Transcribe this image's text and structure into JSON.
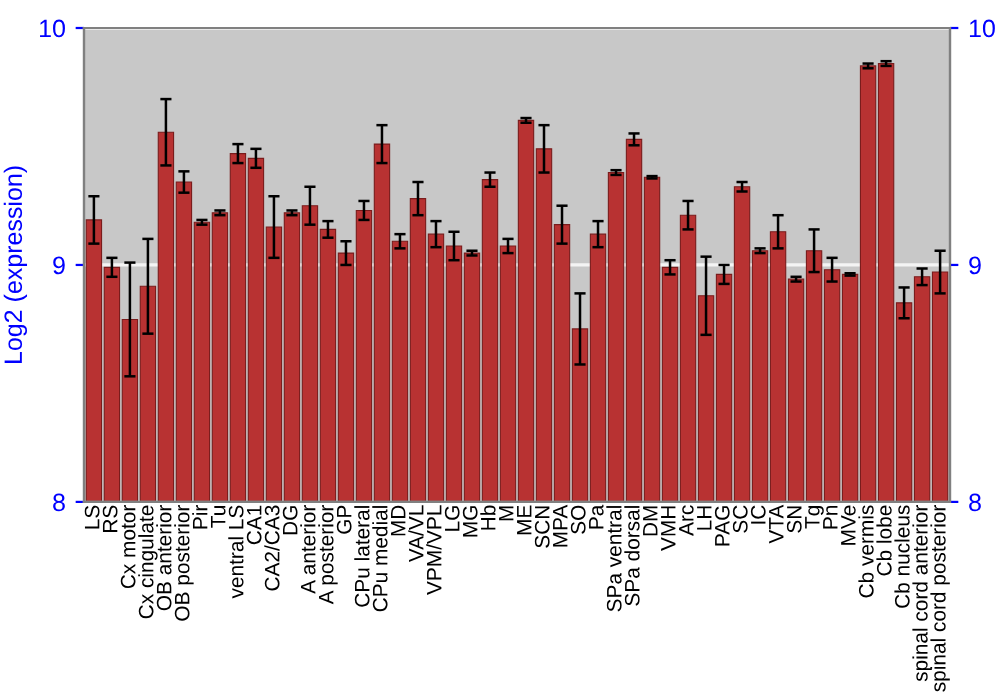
{
  "chart_data": {
    "type": "bar",
    "ylabel": "Log2 (expression)",
    "categories": [
      "LS",
      "RS",
      "Cx motor",
      "Cx cingulate",
      "OB anterior",
      "OB posterior",
      "Pir",
      "Tu",
      "ventral LS",
      "CA1",
      "CA2/CA3",
      "DG",
      "A anterior",
      "A posterior",
      "GP",
      "CPu lateral",
      "CPu medial",
      "MD",
      "VA/VL",
      "VPM/VPL",
      "LG",
      "MG",
      "Hb",
      "M",
      "ME",
      "SCN",
      "MPA",
      "SO",
      "Pa",
      "SPa ventral",
      "SPa dorsal",
      "DM",
      "VMH",
      "Arc",
      "LH",
      "PAG",
      "SC",
      "IC",
      "VTA",
      "SN",
      "Tg",
      "Pn",
      "MVe",
      "Cb vermis",
      "Cb lobe",
      "Cb nucleus",
      "spinal cord anterior",
      "spinal cord posterior"
    ],
    "values": [
      9.19,
      8.99,
      8.77,
      8.91,
      9.56,
      9.35,
      9.18,
      9.22,
      9.47,
      9.45,
      9.16,
      9.22,
      9.25,
      9.15,
      9.05,
      9.23,
      9.51,
      9.1,
      9.28,
      9.13,
      9.08,
      9.05,
      9.36,
      9.08,
      9.61,
      9.49,
      9.17,
      8.73,
      9.13,
      9.39,
      9.53,
      9.37,
      8.99,
      9.21,
      8.87,
      8.96,
      9.33,
      9.06,
      9.14,
      8.94,
      9.06,
      8.98,
      8.96,
      9.84,
      9.85,
      8.84,
      8.95,
      8.97
    ],
    "errors": [
      0.1,
      0.04,
      0.24,
      0.2,
      0.14,
      0.045,
      0.01,
      0.01,
      0.04,
      0.04,
      0.13,
      0.01,
      0.08,
      0.035,
      0.05,
      0.04,
      0.08,
      0.03,
      0.07,
      0.055,
      0.06,
      0.01,
      0.03,
      0.03,
      0.01,
      0.1,
      0.08,
      0.15,
      0.055,
      0.01,
      0.025,
      0.005,
      0.03,
      0.06,
      0.165,
      0.04,
      0.02,
      0.01,
      0.07,
      0.01,
      0.09,
      0.05,
      0.005,
      0.01,
      0.01,
      0.065,
      0.035,
      0.09
    ],
    "color": "#b83232",
    "ylim": [
      8,
      10
    ],
    "yticks": [
      8,
      9,
      10
    ],
    "y2lim": [
      8,
      10
    ],
    "y2ticks": [
      8,
      9,
      10
    ],
    "grid": "y"
  }
}
